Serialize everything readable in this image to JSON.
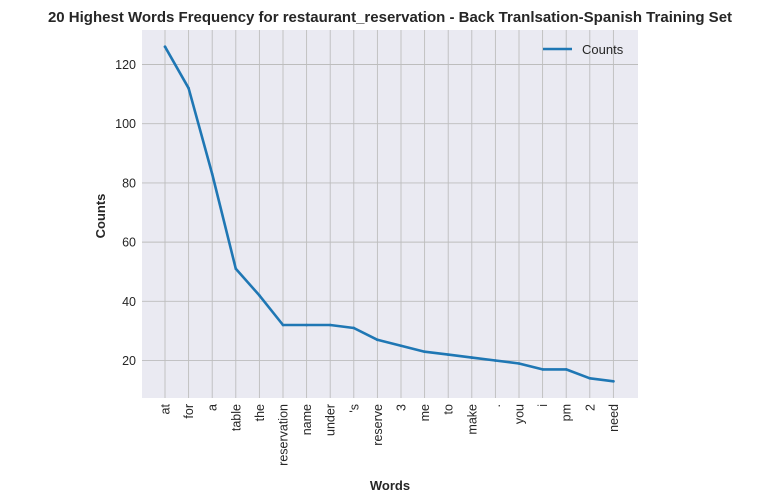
{
  "chart_data": {
    "type": "line",
    "title": "20 Highest Words Frequency for restaurant_reservation - Back Tranlsation-Spanish Training Set",
    "xlabel": "Words",
    "ylabel": "Counts",
    "categories": [
      "at",
      "for",
      "a",
      "table",
      "the",
      "reservation",
      "name",
      "under",
      "'s",
      "reserve",
      "3",
      "me",
      "to",
      "make",
      ".",
      "you",
      "i",
      "pm",
      "2",
      "need"
    ],
    "series": [
      {
        "name": "Counts",
        "color": "#1f77b4",
        "values": [
          126,
          112,
          83,
          51,
          42,
          32,
          32,
          32,
          31,
          27,
          25,
          23,
          22,
          21,
          20,
          19,
          17,
          17,
          14,
          13
        ]
      }
    ],
    "yticks": [
      20,
      40,
      60,
      80,
      100,
      120
    ],
    "ylim": [
      7.35,
      131.65
    ],
    "grid": true,
    "legend_position": "top-right",
    "plot_background": "#eaeaf2",
    "grid_color": "#bdbdbd"
  }
}
